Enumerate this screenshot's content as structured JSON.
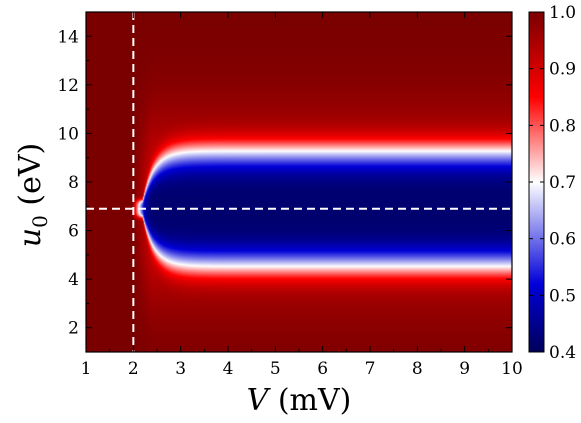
{
  "chart_data": {
    "type": "heatmap",
    "xlabel": "V (mV)",
    "ylabel": "u0 (eV)",
    "xlim": [
      1,
      10
    ],
    "ylim": [
      1,
      15
    ],
    "x_ticks": [
      1,
      2,
      3,
      4,
      5,
      6,
      7,
      8,
      9,
      10
    ],
    "x_tick_labels": [
      "1",
      "2",
      "3",
      "4",
      "5",
      "6",
      "7",
      "8",
      "9",
      "10"
    ],
    "y_ticks": [
      2,
      4,
      6,
      8,
      10,
      12,
      14
    ],
    "y_tick_labels": [
      "2",
      "4",
      "6",
      "8",
      "10",
      "12",
      "14"
    ],
    "colorbar": {
      "range": [
        0.4,
        1.0
      ],
      "ticks": [
        0.4,
        0.5,
        0.6,
        0.7,
        0.8,
        0.9,
        1.0
      ],
      "tick_labels": [
        "0.4",
        "0.5",
        "0.6",
        "0.7",
        "0.8",
        "0.9",
        "1.0"
      ],
      "colormap": [
        "#00005a",
        "#0000d8",
        "#ffffff",
        "#ff0000",
        "#7a0000"
      ]
    },
    "reference_lines": {
      "vertical_x": 2.0,
      "horizontal_y": 6.9,
      "style": "white dashed"
    },
    "surface": {
      "threshold_V": 2.0,
      "center_u0": 6.9,
      "dip_halfwidth_u0": 2.1,
      "dip_onset_V": 2.2,
      "min_value": 0.42,
      "max_value": 1.0
    }
  }
}
